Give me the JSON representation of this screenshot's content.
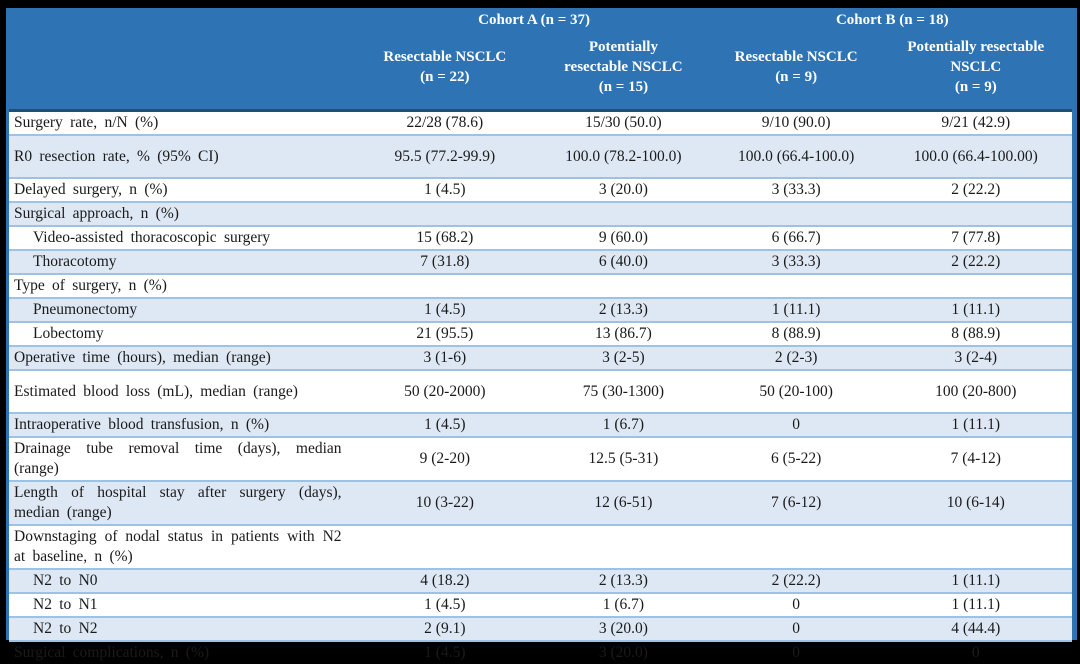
{
  "table": {
    "header": {
      "cohort_a": "Cohort A (n = 37)",
      "cohort_b": "Cohort B (n = 18)",
      "columns": [
        {
          "label": "Resectable NSCLC\n(n = 22)"
        },
        {
          "label": "Potentially\nresectable NSCLC\n(n = 15)"
        },
        {
          "label": "Resectable NSCLC\n(n = 9)"
        },
        {
          "label": "Potentially resectable\nNSCLC\n(n = 9)"
        }
      ]
    },
    "rows": [
      {
        "label": "Surgery rate, n/N (%)",
        "indent": false,
        "values": [
          "22/28 (78.6)",
          "15/30 (50.0)",
          "9/10 (90.0)",
          "9/21 (42.9)"
        ]
      },
      {
        "label": "R0 resection rate, % (95% CI)",
        "indent": false,
        "values": [
          "95.5 (77.2-99.9)",
          "100.0 (78.2-100.0)",
          "100.0 (66.4-100.0)",
          "100.0 (66.4-100.00)"
        ]
      },
      {
        "label": "Delayed surgery, n (%)",
        "indent": false,
        "values": [
          "1 (4.5)",
          "3 (20.0)",
          "3 (33.3)",
          "2 (22.2)"
        ]
      },
      {
        "label": "Surgical approach, n (%)",
        "indent": false,
        "values": [
          "",
          "",
          "",
          ""
        ]
      },
      {
        "label": "Video-assisted thoracoscopic surgery",
        "indent": true,
        "values": [
          "15 (68.2)",
          "9 (60.0)",
          "6 (66.7)",
          "7 (77.8)"
        ]
      },
      {
        "label": "Thoracotomy",
        "indent": true,
        "values": [
          "7 (31.8)",
          "6 (40.0)",
          "3 (33.3)",
          "2 (22.2)"
        ]
      },
      {
        "label": "Type of surgery, n (%)",
        "indent": false,
        "values": [
          "",
          "",
          "",
          ""
        ]
      },
      {
        "label": "Pneumonectomy",
        "indent": true,
        "values": [
          "1 (4.5)",
          "2 (13.3)",
          "1 (11.1)",
          "1 (11.1)"
        ]
      },
      {
        "label": "Lobectomy",
        "indent": true,
        "values": [
          "21 (95.5)",
          "13 (86.7)",
          "8 (88.9)",
          "8 (88.9)"
        ]
      },
      {
        "label": "Operative time (hours), median (range)",
        "indent": false,
        "values": [
          "3 (1-6)",
          "3 (2-5)",
          "2 (2-3)",
          "3 (2-4)"
        ]
      },
      {
        "label": "Estimated blood loss (mL), median (range)",
        "indent": false,
        "values": [
          "50 (20-2000)",
          "75 (30-1300)",
          "50 (20-100)",
          "100 (20-800)"
        ]
      },
      {
        "label": "Intraoperative blood transfusion, n (%)",
        "indent": false,
        "values": [
          "1 (4.5)",
          "1 (6.7)",
          "0",
          "1 (11.1)"
        ]
      },
      {
        "label": "Drainage tube removal time (days), median (range)",
        "indent": false,
        "values": [
          "9 (2-20)",
          "12.5 (5-31)",
          "6 (5-22)",
          "7 (4-12)"
        ]
      },
      {
        "label": "Length of hospital stay after surgery (days), median (range)",
        "indent": false,
        "values": [
          "10 (3-22)",
          "12 (6-51)",
          "7 (6-12)",
          "10 (6-14)"
        ]
      },
      {
        "label": "Downstaging of nodal status in patients with N2 at baseline, n (%)",
        "indent": false,
        "values": [
          "",
          "",
          "",
          ""
        ]
      },
      {
        "label": "N2 to N0",
        "indent": true,
        "values": [
          "4 (18.2)",
          "2 (13.3)",
          "2 (22.2)",
          "1 (11.1)"
        ]
      },
      {
        "label": "N2 to N1",
        "indent": true,
        "values": [
          "1 (4.5)",
          "1 (6.7)",
          "0",
          "1 (11.1)"
        ]
      },
      {
        "label": "N2 to N2",
        "indent": true,
        "values": [
          "2 (9.1)",
          "3 (20.0)",
          "0",
          "4 (44.4)"
        ]
      },
      {
        "label": "Surgical complications, n (%)",
        "indent": false,
        "values": [
          "1 (4.5)",
          "3 (20.0)",
          "0",
          "0"
        ]
      }
    ]
  },
  "colors": {
    "header_bg": "#2E74B5",
    "header_text": "#FFFFFF",
    "stripe_blue": "#DEE8F4",
    "row_border": "#9CC3E6",
    "header_divider": "#1F4E79",
    "outer_frame": "#000000"
  }
}
